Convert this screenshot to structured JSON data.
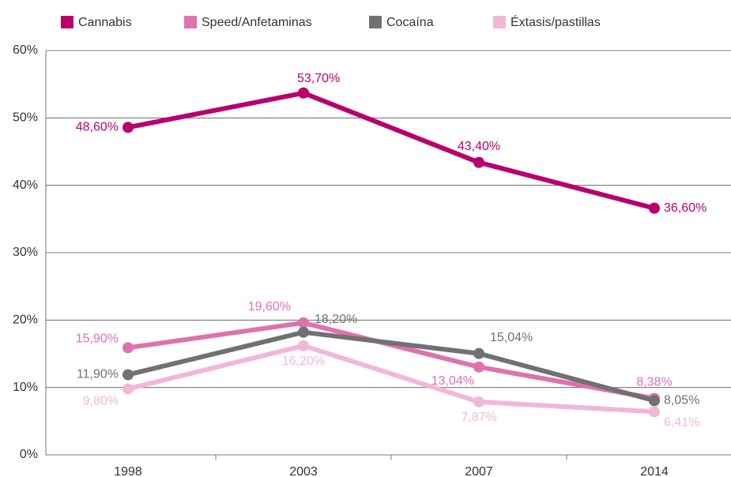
{
  "chart_data": {
    "type": "line",
    "categories": [
      "1998",
      "2003",
      "2007",
      "2014"
    ],
    "series": [
      {
        "name": "Cannabis",
        "color": "#b8006e",
        "values": [
          48.6,
          53.7,
          43.4,
          36.6
        ],
        "value_labels": [
          "48,60%",
          "53,70%",
          "43,40%",
          "36,60%"
        ]
      },
      {
        "name": "Speed/Anfetaminas",
        "color": "#de72ae",
        "values": [
          15.9,
          19.6,
          13.04,
          8.38
        ],
        "value_labels": [
          "15,90%",
          "19,60%",
          "13,04%",
          "8,38%"
        ]
      },
      {
        "name": "Cocaína",
        "color": "#717073",
        "values": [
          11.9,
          18.2,
          15.04,
          8.05
        ],
        "value_labels": [
          "11,90%",
          "18,20%",
          "15,04%",
          "8,05%"
        ]
      },
      {
        "name": "Éxtasis/pastillas",
        "color": "#f0b8d8",
        "values": [
          9.8,
          16.2,
          7.87,
          6.41
        ],
        "value_labels": [
          "9,80%",
          "16,20%",
          "7,87%",
          "6,41%"
        ]
      }
    ],
    "ylim": [
      0,
      60
    ],
    "yticks": [
      {
        "value": 0,
        "label": "0%"
      },
      {
        "value": 10,
        "label": "10%"
      },
      {
        "value": 20,
        "label": "20%"
      },
      {
        "value": 30,
        "label": "30%"
      },
      {
        "value": 40,
        "label": "40%"
      },
      {
        "value": 50,
        "label": "50%"
      },
      {
        "value": 60,
        "label": "60%"
      }
    ],
    "grid": true,
    "legend": "top"
  }
}
